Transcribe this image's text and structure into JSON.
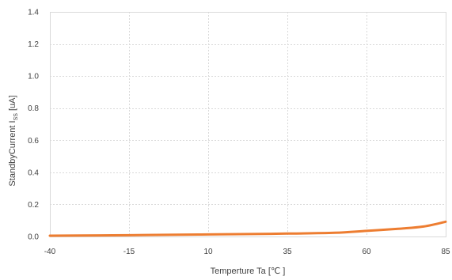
{
  "chart_data": {
    "type": "line",
    "title": "",
    "xlabel": "Temperture Ta [℃ ]",
    "ylabel": {
      "prefix": "StandbyCurrent  I",
      "subscript": "SS",
      "suffix": " [uA]"
    },
    "xlim": [
      -40,
      85
    ],
    "ylim": [
      0.0,
      1.4
    ],
    "xticks": [
      -40,
      -15,
      10,
      35,
      60,
      85
    ],
    "xtick_labels": [
      "-40",
      "-15",
      "10",
      "35",
      "60",
      "85"
    ],
    "yticks": [
      0.0,
      0.2,
      0.4,
      0.6,
      0.8,
      1.0,
      1.2,
      1.4
    ],
    "ytick_labels": [
      "0.0",
      "0.2",
      "0.4",
      "0.6",
      "0.8",
      "1.0",
      "1.2",
      "1.4"
    ],
    "grid": true,
    "series": [
      {
        "color": "#ed7d31",
        "x": [
          -40,
          -30,
          -15,
          0,
          10,
          20,
          35,
          50,
          60,
          70,
          78,
          85
        ],
        "y": [
          0.005,
          0.006,
          0.008,
          0.011,
          0.013,
          0.015,
          0.018,
          0.023,
          0.035,
          0.048,
          0.062,
          0.092
        ]
      }
    ]
  }
}
